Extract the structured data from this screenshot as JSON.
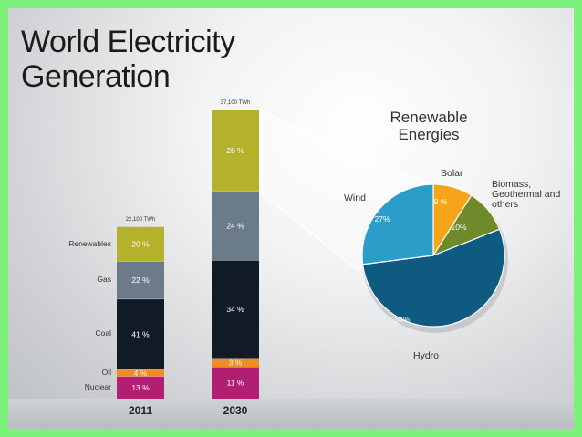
{
  "colors": {
    "renewables": "#b4b22a",
    "gas": "#6b7b8a",
    "coal": "#111b26",
    "oil": "#f28b20",
    "nuclear": "#b21f72",
    "solar": "#f6a418",
    "biomass": "#6f8a2a",
    "hydro": "#0e5a80",
    "wind": "#2a9ec8"
  },
  "header": {
    "title_line1": "World Electricity",
    "title_line2": "Generation",
    "pie_title_line1": "Renewable",
    "pie_title_line2": "Energies"
  },
  "chart_data": [
    {
      "type": "bar",
      "stacked": true,
      "categories": [
        "2011",
        "2030"
      ],
      "totals": [
        "22,100 TWh",
        "37,100 TWh"
      ],
      "totals_twh": [
        22100,
        37100
      ],
      "series": [
        {
          "name": "Nuclear",
          "values": [
            13,
            11
          ],
          "labels": [
            "13 %",
            "11 %"
          ],
          "color_key": "nuclear"
        },
        {
          "name": "Oil",
          "values": [
            4,
            3
          ],
          "labels": [
            "4 %",
            "3 %"
          ],
          "color_key": "oil"
        },
        {
          "name": "Coal",
          "values": [
            41,
            34
          ],
          "labels": [
            "41 %",
            "34 %"
          ],
          "color_key": "coal"
        },
        {
          "name": "Gas",
          "values": [
            22,
            24
          ],
          "labels": [
            "22 %",
            "24 %"
          ],
          "color_key": "gas"
        },
        {
          "name": "Renewables",
          "values": [
            20,
            28
          ],
          "labels": [
            "20 %",
            "28 %"
          ],
          "color_key": "renewables"
        }
      ],
      "value_unit": "percent share of generation"
    },
    {
      "type": "pie",
      "title": "Renewable Energies",
      "slices": [
        {
          "name": "Solar",
          "value": 9,
          "label": "9 %",
          "color_key": "solar"
        },
        {
          "name": "Biomass, Geothermal and others",
          "value": 10,
          "label": "10%",
          "color_key": "biomass"
        },
        {
          "name": "Hydro",
          "value": 54,
          "label": "54%",
          "color_key": "hydro"
        },
        {
          "name": "Wind",
          "value": 27,
          "label": "27%",
          "color_key": "wind"
        }
      ],
      "name_lines": {
        "Solar": [
          "Solar"
        ],
        "Biomass, Geothermal and others": [
          "Biomass,",
          "Geothermal and",
          "others"
        ],
        "Hydro": [
          "Hydro"
        ],
        "Wind": [
          "Wind"
        ]
      }
    }
  ]
}
